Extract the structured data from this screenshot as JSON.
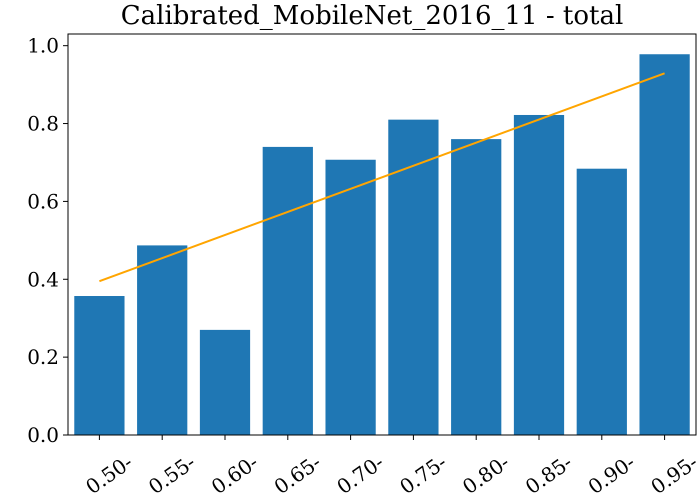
{
  "chart_data": {
    "type": "bar",
    "title": "Calibrated_MobileNet_2016_11 - total",
    "xlabel": "",
    "ylabel": "",
    "categories": [
      "0.50-",
      "0.55-",
      "0.60-",
      "0.65-",
      "0.70-",
      "0.75-",
      "0.80-",
      "0.85-",
      "0.90-",
      "0.95-"
    ],
    "values": [
      0.357,
      0.487,
      0.27,
      0.74,
      0.707,
      0.81,
      0.76,
      0.822,
      0.684,
      0.978
    ],
    "trend_line": {
      "start": 0.395,
      "end": 0.929
    },
    "ylim": [
      0,
      1.03
    ],
    "yticks": [
      0.0,
      0.2,
      0.4,
      0.6,
      0.8,
      1.0
    ],
    "ytick_labels": [
      "0.0",
      "0.2",
      "0.4",
      "0.6",
      "0.8",
      "1.0"
    ],
    "colors": {
      "bar": "#1f77b4",
      "trend": "#ffa500"
    },
    "grid": false,
    "legend": "none"
  }
}
